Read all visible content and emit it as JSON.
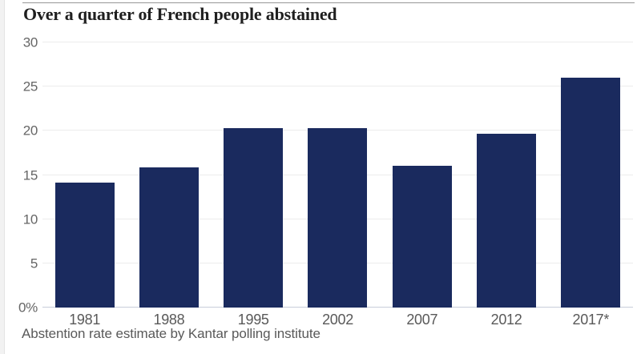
{
  "chart_data": {
    "type": "bar",
    "title": "Over a quarter of French people abstained",
    "source": "Abstention rate estimate by Kantar polling institute",
    "categories": [
      "1981",
      "1988",
      "1995",
      "2002",
      "2007",
      "2012",
      "2017*"
    ],
    "values": [
      14.1,
      15.9,
      20.3,
      20.3,
      16.0,
      19.7,
      26.0
    ],
    "unit": "%",
    "xlabel": "",
    "ylabel": "",
    "ylim": [
      0,
      30
    ],
    "yticks": [
      0,
      5,
      10,
      15,
      20,
      25,
      30
    ],
    "ytick_labels": [
      "0%",
      "5",
      "10",
      "15",
      "20",
      "25",
      "30"
    ],
    "grid": true,
    "legend": "none",
    "colors": {
      "bar": "#1a2a5e",
      "gridline": "#ececec",
      "baseline": "#c7cdda",
      "ytick_label": "#666666",
      "xtick_label": "#595959",
      "title": "#1f1f1f",
      "source": "#595959",
      "top_rule": "#979797"
    }
  }
}
